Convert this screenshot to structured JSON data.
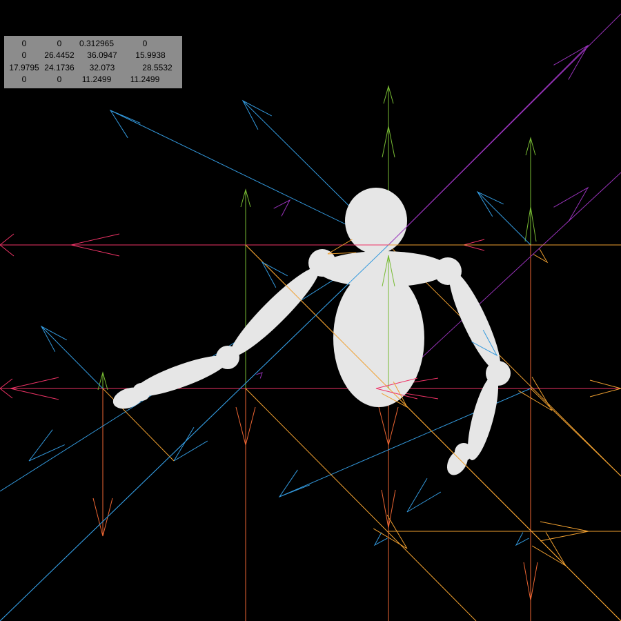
{
  "matrix": [
    [
      "0",
      "0",
      "0.312965",
      "0"
    ],
    [
      "0",
      "26.4452",
      "36.0947",
      "15.9938"
    ],
    [
      "17.9795",
      "24.1736",
      "32.073",
      "28.5532"
    ],
    [
      "0",
      "0",
      "11.2499",
      "11.2499"
    ]
  ],
  "colors": {
    "background": "#000000",
    "panel": "#8c8c8c",
    "figure": "#e6e6e6",
    "x_axis": "#ee3366",
    "y_axis": "#77bb33",
    "z_axis": "#ee6633",
    "diag_blue": "#3399dd",
    "diag_orange": "#f0a030",
    "diag_purple": "#9933bb"
  },
  "icons": [
    "gizmo-arrow-icon",
    "mannequin-figure"
  ]
}
